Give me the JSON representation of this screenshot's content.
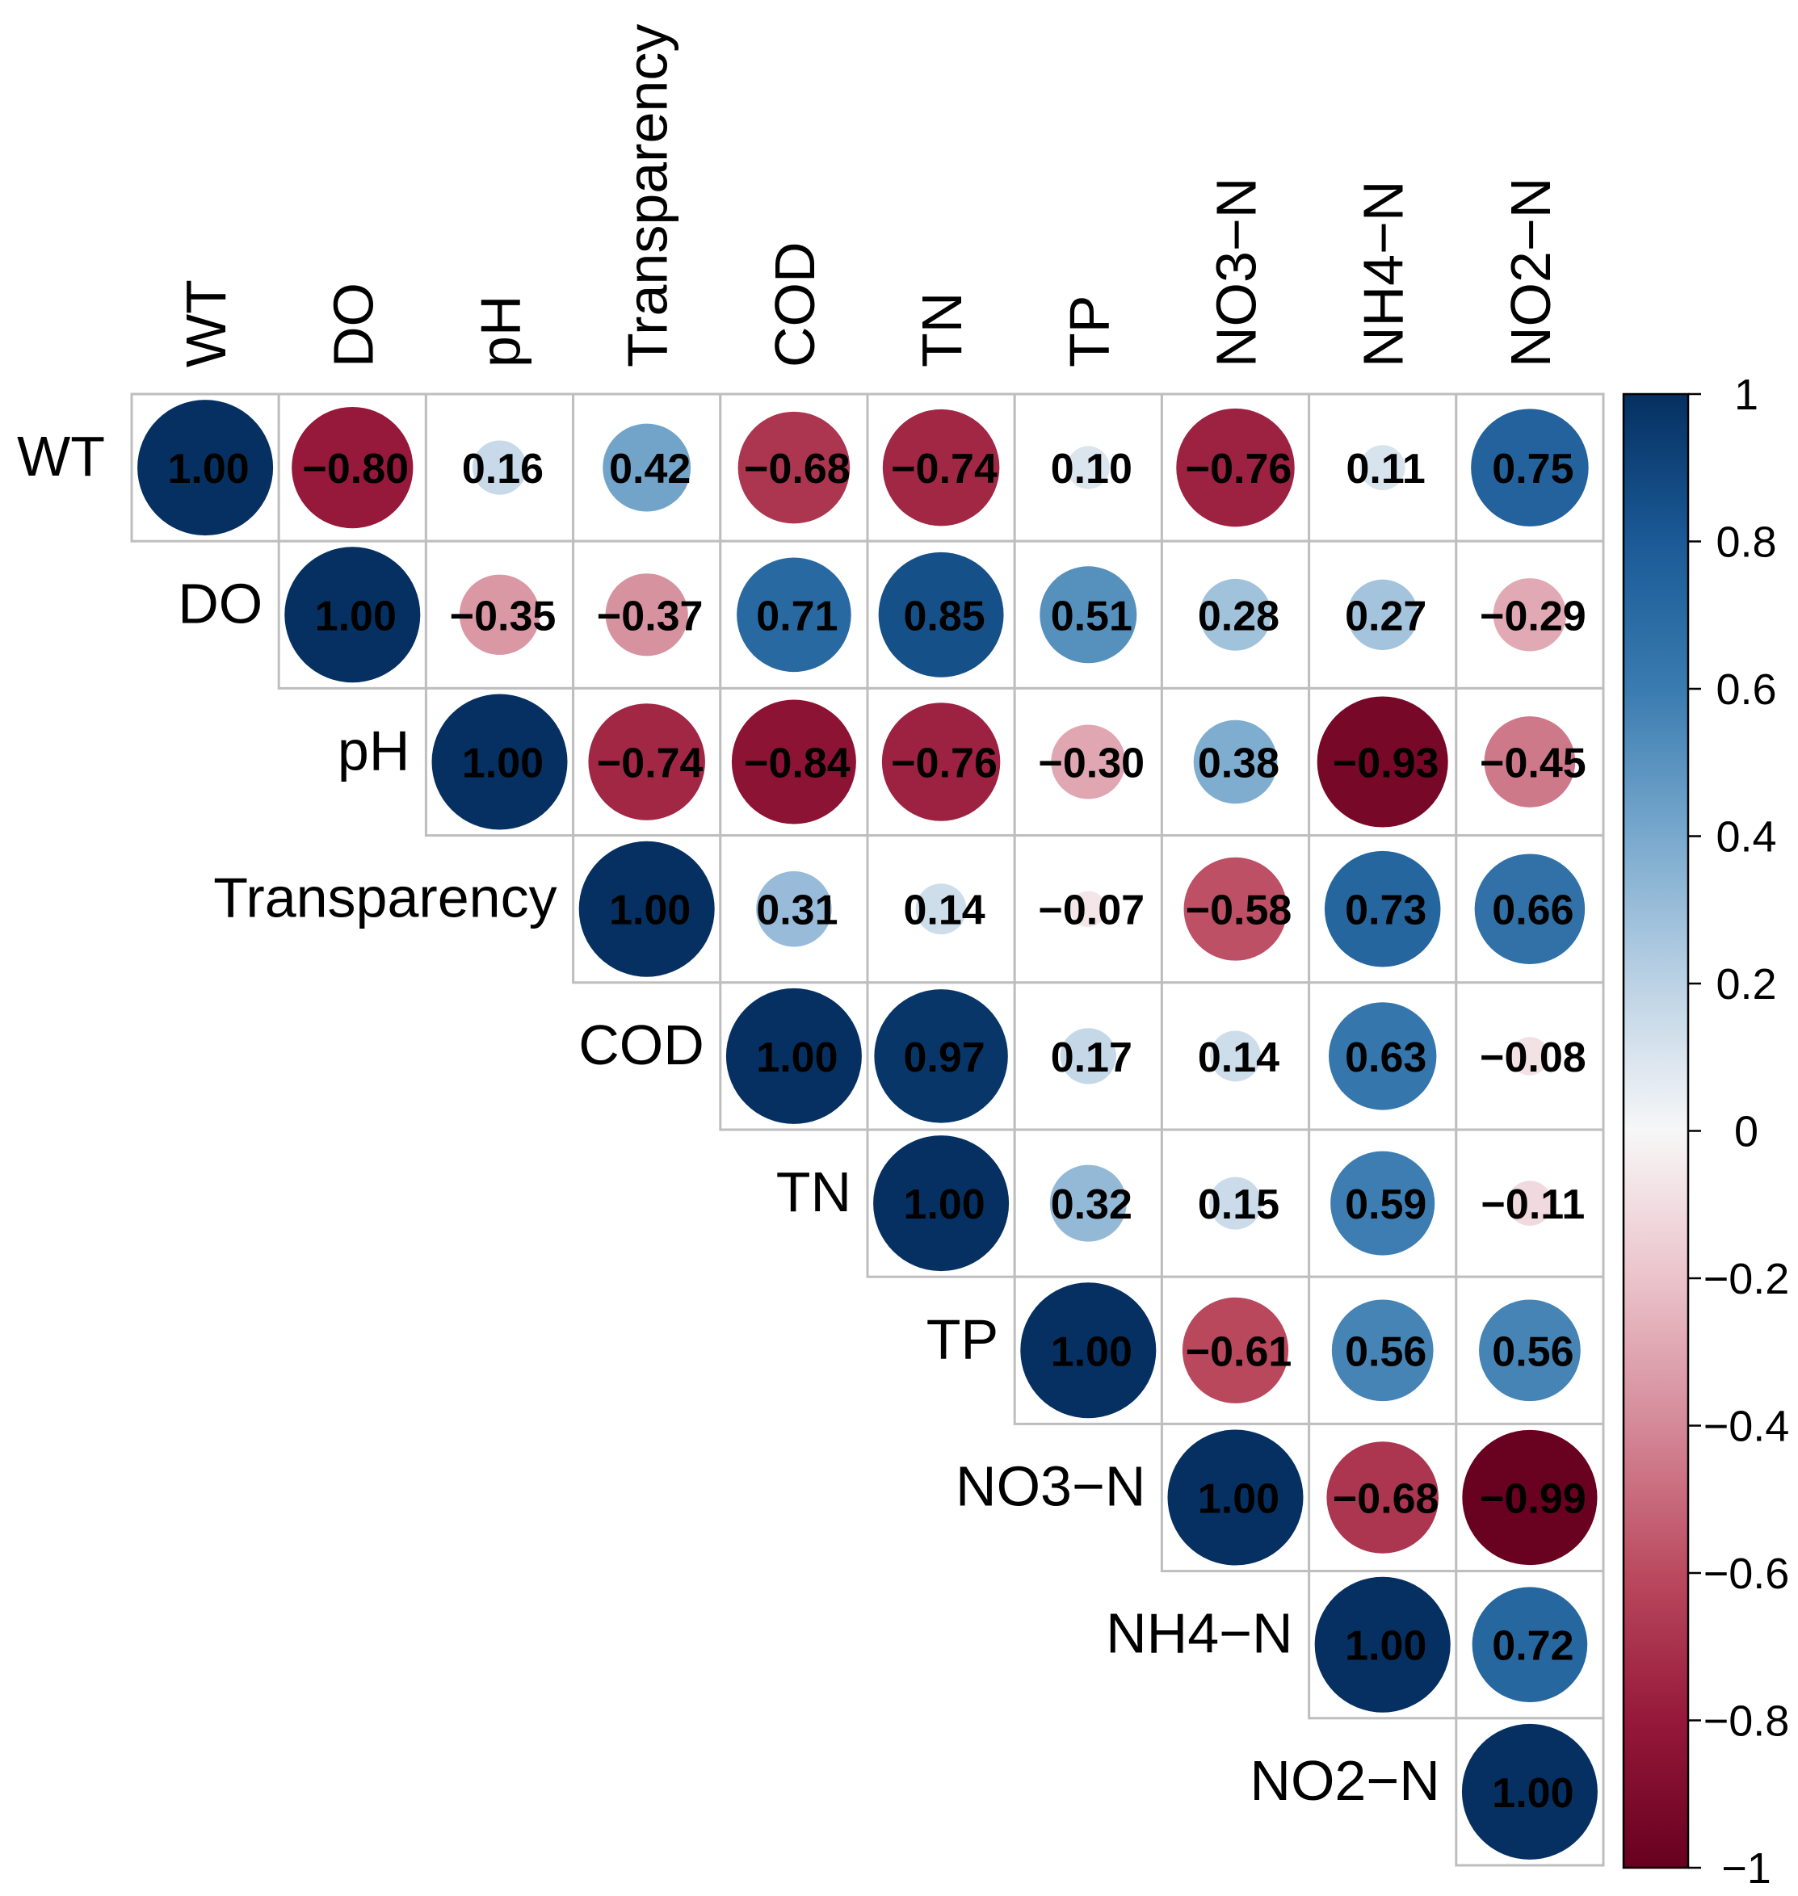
{
  "chart_data": {
    "type": "heatmap",
    "style": "upper-triangle correlation matrix with circles",
    "title": "",
    "variables": [
      "WT",
      "DO",
      "pH",
      "Transparency",
      "COD",
      "TN",
      "TP",
      "NO3−N",
      "NH4−N",
      "NO2−N"
    ],
    "matrix": [
      [
        1.0,
        -0.8,
        0.16,
        0.42,
        -0.68,
        -0.74,
        0.1,
        -0.76,
        0.11,
        0.75
      ],
      [
        null,
        1.0,
        -0.35,
        -0.37,
        0.71,
        0.85,
        0.51,
        0.28,
        0.27,
        -0.29
      ],
      [
        null,
        null,
        1.0,
        -0.74,
        -0.84,
        -0.76,
        -0.3,
        0.38,
        -0.93,
        -0.45
      ],
      [
        null,
        null,
        null,
        1.0,
        0.31,
        0.14,
        -0.07,
        -0.58,
        0.73,
        0.66
      ],
      [
        null,
        null,
        null,
        null,
        1.0,
        0.97,
        0.17,
        0.14,
        0.63,
        -0.08
      ],
      [
        null,
        null,
        null,
        null,
        null,
        1.0,
        0.32,
        0.15,
        0.59,
        -0.11
      ],
      [
        null,
        null,
        null,
        null,
        null,
        null,
        1.0,
        -0.61,
        0.56,
        0.56
      ],
      [
        null,
        null,
        null,
        null,
        null,
        null,
        null,
        1.0,
        -0.68,
        -0.99
      ],
      [
        null,
        null,
        null,
        null,
        null,
        null,
        null,
        null,
        1.0,
        0.72
      ],
      [
        null,
        null,
        null,
        null,
        null,
        null,
        null,
        null,
        null,
        1.0
      ]
    ],
    "colorbar": {
      "range": [
        -1,
        1
      ],
      "ticks": [
        "1",
        "0.8",
        "0.6",
        "0.4",
        "0.2",
        "0",
        "−0.2",
        "−0.4",
        "−0.6",
        "−0.8",
        "−1"
      ],
      "colors": {
        "negative": "#67001F",
        "neutral": "#F7F7F7",
        "positive": "#053061"
      }
    },
    "grid_color": "#BEBEBE",
    "text_color": "#000000"
  }
}
